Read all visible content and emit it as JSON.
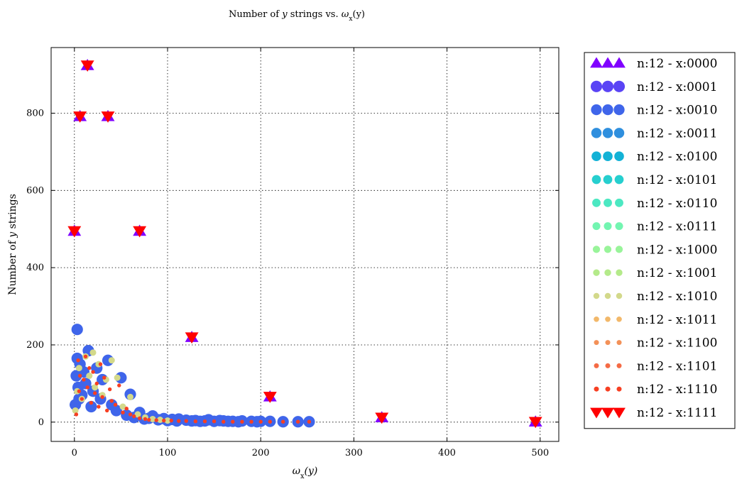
{
  "chart_data": {
    "type": "scatter",
    "title": "Number of y strings vs. ω_x(y)",
    "title_parts": [
      "Number of ",
      "y",
      " strings vs. ",
      "ω",
      "x",
      "(y)"
    ],
    "xlabel": "ω_x(y)",
    "xlabel_parts": [
      "ω",
      "x",
      "(y)"
    ],
    "ylabel": "Number of y strings",
    "ylabel_parts": [
      "Number of ",
      "y",
      " strings"
    ],
    "xlim": [
      -25,
      520
    ],
    "ylim": [
      -50,
      970
    ],
    "xticks": [
      0,
      100,
      200,
      300,
      400,
      500
    ],
    "yticks": [
      0,
      200,
      400,
      600,
      800
    ],
    "xtick_labels": [
      "0",
      "100",
      "200",
      "300",
      "400",
      "500"
    ],
    "ytick_labels": [
      "0",
      "200",
      "400",
      "600",
      "800"
    ],
    "grid": true,
    "grid_style": "dotted",
    "legend_position": "outside-right",
    "series": [
      {
        "name": "n:12 - x:0000",
        "marker": "triangle-up",
        "color": "#8000ff",
        "size": 10,
        "x": [
          0,
          6,
          14,
          36,
          70,
          126,
          210,
          330,
          495
        ],
        "y": [
          495,
          792,
          924,
          792,
          495,
          220,
          66,
          12,
          1
        ]
      },
      {
        "name": "n:12 - x:0001",
        "marker": "circle",
        "color": "#5a44f5",
        "size": 9.5,
        "x": [],
        "y": []
      },
      {
        "name": "n:12 - x:0010",
        "marker": "circle",
        "color": "#3f65ea",
        "size": 9,
        "x": [
          1,
          2,
          3,
          3,
          4,
          5,
          6,
          8,
          10,
          12,
          15,
          18,
          20,
          24,
          28,
          30,
          36,
          40,
          45,
          50,
          56,
          60,
          64,
          70,
          75,
          80,
          84,
          90,
          96,
          100,
          105,
          110,
          112,
          120,
          126,
          130,
          135,
          140,
          144,
          150,
          156,
          160,
          165,
          170,
          176,
          180,
          190,
          196,
          200,
          210,
          224,
          240,
          252
        ],
        "y": [
          45,
          120,
          165,
          240,
          90,
          60,
          150,
          70,
          130,
          100,
          185,
          40,
          80,
          140,
          60,
          110,
          160,
          45,
          30,
          115,
          18,
          72,
          12,
          25,
          8,
          10,
          16,
          6,
          9,
          4,
          7,
          3,
          8,
          5,
          3,
          4,
          2,
          3,
          6,
          2,
          4,
          3,
          2,
          2,
          1,
          3,
          2,
          1,
          2,
          2,
          1,
          1,
          1
        ]
      },
      {
        "name": "n:12 - x:0011",
        "marker": "circle",
        "color": "#2f8fde",
        "size": 8.5,
        "x": [],
        "y": []
      },
      {
        "name": "n:12 - x:0100",
        "marker": "circle",
        "color": "#13b2d6",
        "size": 8,
        "x": [],
        "y": []
      },
      {
        "name": "n:12 - x:0101",
        "marker": "circle",
        "color": "#26cfcf",
        "size": 7.5,
        "x": [],
        "y": []
      },
      {
        "name": "n:12 - x:0110",
        "marker": "circle",
        "color": "#4ce8c2",
        "size": 7,
        "x": [],
        "y": []
      },
      {
        "name": "n:12 - x:0111",
        "marker": "circle",
        "color": "#73f5b1",
        "size": 6.5,
        "x": [],
        "y": []
      },
      {
        "name": "n:12 - x:1000",
        "marker": "circle",
        "color": "#99f49a",
        "size": 6,
        "x": [],
        "y": []
      },
      {
        "name": "n:12 - x:1001",
        "marker": "circle",
        "color": "#b4ea8a",
        "size": 5.5,
        "x": [],
        "y": []
      },
      {
        "name": "n:12 - x:1010",
        "marker": "circle",
        "color": "#d3d98b",
        "size": 5,
        "x": [
          1,
          3,
          5,
          8,
          12,
          16,
          20,
          22,
          26,
          30,
          34,
          40,
          46,
          52,
          60,
          68,
          76,
          84,
          92,
          100
        ],
        "y": [
          30,
          80,
          140,
          60,
          170,
          120,
          180,
          90,
          150,
          70,
          110,
          160,
          115,
          40,
          65,
          20,
          12,
          8,
          6,
          4
        ]
      },
      {
        "name": "n:12 - x:1011",
        "marker": "circle",
        "color": "#f2b86a",
        "size": 4.5,
        "x": [],
        "y": []
      },
      {
        "name": "n:12 - x:1100",
        "marker": "circle",
        "color": "#f39158",
        "size": 4,
        "x": [],
        "y": []
      },
      {
        "name": "n:12 - x:1101",
        "marker": "circle",
        "color": "#f56b45",
        "size": 3.5,
        "x": [],
        "y": []
      },
      {
        "name": "n:12 - x:1110",
        "marker": "circle",
        "color": "#f73f22",
        "size": 3,
        "x": [
          2,
          4,
          5,
          6,
          8,
          10,
          12,
          14,
          16,
          18,
          20,
          22,
          24,
          26,
          28,
          30,
          32,
          35,
          38,
          40,
          44,
          48,
          52,
          56,
          60,
          64,
          70,
          76,
          80,
          88,
          96,
          104,
          112,
          120,
          130,
          140,
          150,
          160,
          170,
          180,
          190,
          200,
          210,
          224,
          240,
          252
        ],
        "y": [
          20,
          160,
          80,
          120,
          60,
          110,
          170,
          90,
          140,
          50,
          130,
          75,
          100,
          40,
          150,
          65,
          115,
          30,
          85,
          55,
          45,
          95,
          25,
          35,
          20,
          15,
          10,
          8,
          6,
          5,
          4,
          4,
          3,
          3,
          2,
          2,
          2,
          1,
          1,
          1,
          1,
          1,
          1,
          1,
          1,
          1
        ]
      },
      {
        "name": "n:12 - x:1111",
        "marker": "triangle-down",
        "color": "#ff0000",
        "size": 10,
        "x": [
          0,
          6,
          14,
          36,
          70,
          126,
          210,
          330,
          495
        ],
        "y": [
          495,
          792,
          924,
          792,
          495,
          220,
          66,
          12,
          1
        ]
      }
    ]
  }
}
